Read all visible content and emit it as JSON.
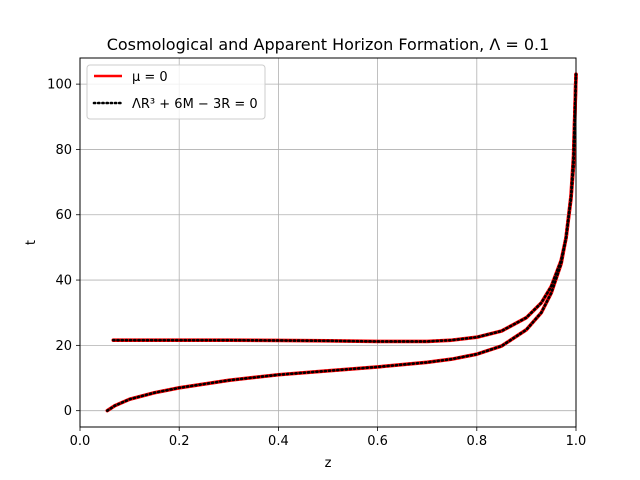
{
  "chart_data": {
    "type": "line",
    "title": "Cosmological and Apparent Horizon Formation, Λ = 0.1",
    "xlabel": "z",
    "ylabel": "t",
    "xlim": [
      0.0,
      1.0
    ],
    "ylim": [
      -5,
      108
    ],
    "xticks": [
      0.0,
      0.2,
      0.4,
      0.6,
      0.8,
      1.0
    ],
    "xtick_labels": [
      "0.0",
      "0.2",
      "0.4",
      "0.6",
      "0.8",
      "1.0"
    ],
    "yticks": [
      0,
      20,
      40,
      60,
      80,
      100
    ],
    "ytick_labels": [
      "0",
      "20",
      "40",
      "60",
      "80",
      "100"
    ],
    "grid": true,
    "legend_position": "top-left",
    "colors": {
      "mu_zero": "#ff0000",
      "cubic_condition": "#000000"
    },
    "series": [
      {
        "name": "μ = 0",
        "style": "solid",
        "color": "#ff0000",
        "branches": [
          {
            "x": [
              0.067,
              0.1,
              0.2,
              0.3,
              0.4,
              0.5,
              0.6,
              0.7,
              0.75,
              0.8,
              0.85,
              0.9,
              0.93,
              0.95,
              0.97,
              0.98,
              0.99,
              0.995,
              1.0
            ],
            "y": [
              21.6,
              21.6,
              21.6,
              21.6,
              21.5,
              21.4,
              21.2,
              21.2,
              21.6,
              22.5,
              24.4,
              28.5,
              33.0,
              38.0,
              46.0,
              53.0,
              65.0,
              75.0,
              103.0
            ]
          },
          {
            "x": [
              0.055,
              0.07,
              0.1,
              0.15,
              0.2,
              0.3,
              0.4,
              0.5,
              0.6,
              0.7,
              0.75,
              0.8,
              0.85,
              0.9,
              0.93,
              0.95,
              0.97,
              0.98,
              0.99,
              0.995,
              1.0
            ],
            "y": [
              0.0,
              1.5,
              3.5,
              5.5,
              7.0,
              9.3,
              11.0,
              12.2,
              13.4,
              14.8,
              15.8,
              17.3,
              19.8,
              24.8,
              30.0,
              36.0,
              45.0,
              53.0,
              66.0,
              78.0,
              103.0
            ]
          }
        ]
      },
      {
        "name": "ΛR³ + 6M − 3R = 0",
        "style": "dotted",
        "color": "#000000",
        "branches": [
          {
            "x": [
              0.067,
              0.1,
              0.2,
              0.3,
              0.4,
              0.5,
              0.6,
              0.7,
              0.75,
              0.8,
              0.85,
              0.9,
              0.93,
              0.95,
              0.97,
              0.98,
              0.99,
              0.995,
              1.0
            ],
            "y": [
              21.6,
              21.6,
              21.6,
              21.6,
              21.5,
              21.4,
              21.2,
              21.2,
              21.6,
              22.5,
              24.4,
              28.5,
              33.0,
              38.0,
              46.0,
              53.0,
              65.0,
              75.0,
              103.0
            ]
          },
          {
            "x": [
              0.055,
              0.07,
              0.1,
              0.15,
              0.2,
              0.3,
              0.4,
              0.5,
              0.6,
              0.7,
              0.75,
              0.8,
              0.85,
              0.9,
              0.93,
              0.95,
              0.97,
              0.98,
              0.99,
              0.995,
              1.0
            ],
            "y": [
              0.0,
              1.5,
              3.5,
              5.5,
              7.0,
              9.3,
              11.0,
              12.2,
              13.4,
              14.8,
              15.8,
              17.3,
              19.8,
              24.8,
              30.0,
              36.0,
              45.0,
              53.0,
              66.0,
              78.0,
              103.0
            ]
          }
        ]
      }
    ]
  }
}
